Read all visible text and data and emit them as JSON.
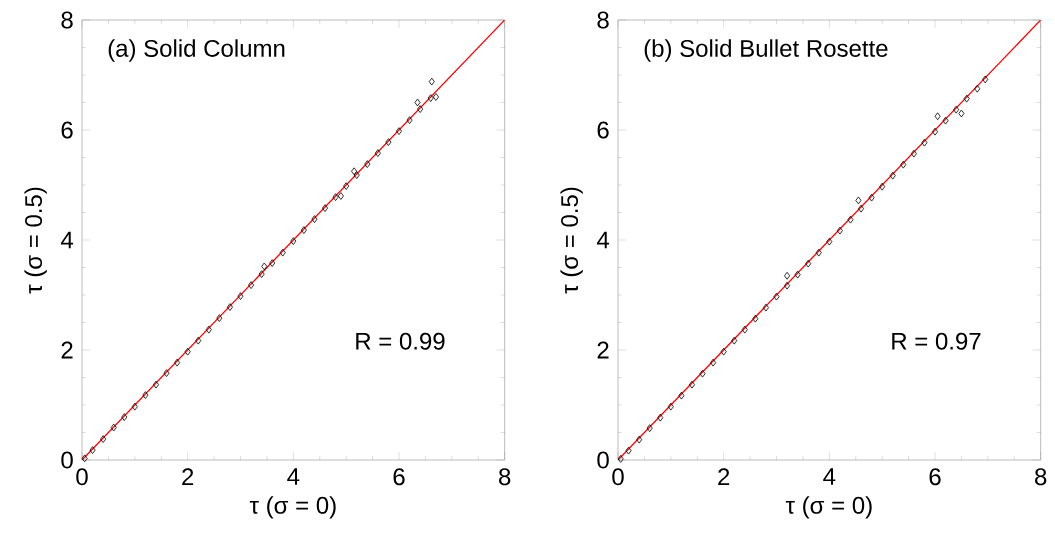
{
  "chart_data": [
    {
      "type": "scatter",
      "title": "(a) Solid Column",
      "xlabel": "τ (σ = 0)",
      "ylabel": "τ (σ = 0.5)",
      "annotations": [
        "R = 0.99"
      ],
      "xlim": [
        0,
        8
      ],
      "ylim": [
        0,
        8
      ],
      "xticks": [
        0,
        2,
        4,
        6,
        8
      ],
      "yticks": [
        0,
        2,
        4,
        6,
        8
      ],
      "series": [
        {
          "marker": "diamond",
          "color": "#000000",
          "x": [
            0.05,
            0.2,
            0.4,
            0.6,
            0.8,
            1.0,
            1.2,
            1.4,
            1.6,
            1.8,
            2.0,
            2.2,
            2.4,
            2.6,
            2.8,
            3.0,
            3.2,
            3.4,
            3.6,
            3.8,
            4.0,
            4.2,
            4.4,
            4.6,
            4.8,
            5.0,
            5.2,
            5.4,
            5.6,
            5.8,
            6.0,
            6.2,
            6.4,
            6.6,
            6.7,
            5.15,
            6.35,
            6.62,
            3.45,
            4.9
          ],
          "values": [
            0.03,
            0.18,
            0.38,
            0.59,
            0.78,
            0.97,
            1.18,
            1.37,
            1.58,
            1.77,
            1.97,
            2.17,
            2.37,
            2.58,
            2.78,
            2.98,
            3.18,
            3.38,
            3.58,
            3.77,
            3.98,
            4.18,
            4.38,
            4.58,
            4.78,
            4.98,
            5.18,
            5.38,
            5.58,
            5.78,
            5.98,
            6.18,
            6.38,
            6.58,
            6.6,
            5.25,
            6.5,
            6.88,
            3.52,
            4.8
          ]
        },
        {
          "type": "line",
          "color": "#ff0000",
          "x": [
            0,
            8
          ],
          "values": [
            0,
            8
          ]
        }
      ]
    },
    {
      "type": "scatter",
      "title": "(b) Solid Bullet Rosette",
      "xlabel": "τ (σ = 0)",
      "ylabel": "τ (σ = 0.5)",
      "annotations": [
        "R = 0.97"
      ],
      "xlim": [
        0,
        8
      ],
      "ylim": [
        0,
        8
      ],
      "xticks": [
        0,
        2,
        4,
        6,
        8
      ],
      "yticks": [
        0,
        2,
        4,
        6,
        8
      ],
      "series": [
        {
          "marker": "diamond",
          "color": "#000000",
          "x": [
            0.05,
            0.2,
            0.4,
            0.6,
            0.8,
            1.0,
            1.2,
            1.4,
            1.6,
            1.8,
            2.0,
            2.2,
            2.4,
            2.6,
            2.8,
            3.0,
            3.2,
            3.4,
            3.6,
            3.8,
            4.0,
            4.2,
            4.4,
            4.6,
            4.8,
            5.0,
            5.2,
            5.4,
            5.6,
            5.8,
            6.0,
            6.2,
            6.4,
            6.6,
            6.8,
            6.95,
            6.5,
            4.55,
            3.2,
            6.05
          ],
          "values": [
            0.02,
            0.17,
            0.37,
            0.58,
            0.77,
            0.97,
            1.17,
            1.37,
            1.57,
            1.77,
            1.97,
            2.17,
            2.37,
            2.57,
            2.77,
            2.97,
            3.17,
            3.37,
            3.57,
            3.77,
            3.97,
            4.17,
            4.37,
            4.57,
            4.77,
            4.97,
            5.17,
            5.37,
            5.57,
            5.77,
            5.97,
            6.17,
            6.37,
            6.57,
            6.75,
            6.92,
            6.3,
            4.72,
            3.35,
            6.25
          ]
        },
        {
          "type": "line",
          "color": "#ff0000",
          "x": [
            0,
            8
          ],
          "values": [
            0,
            8
          ]
        }
      ]
    }
  ]
}
